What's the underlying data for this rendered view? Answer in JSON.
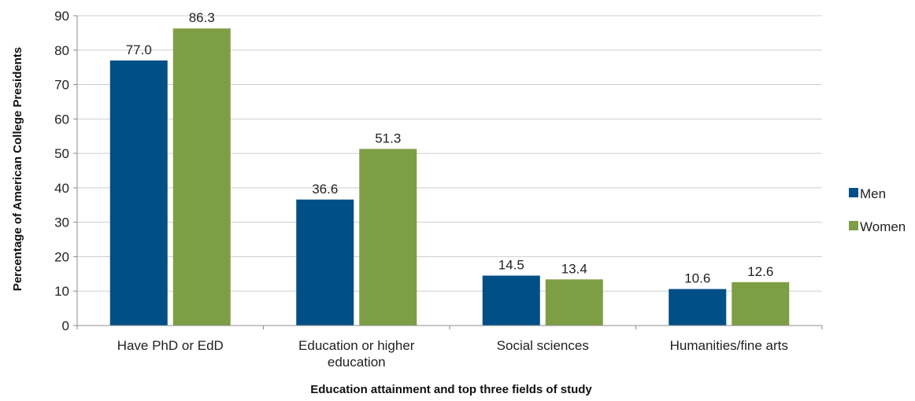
{
  "chart_data": {
    "type": "bar",
    "categories": [
      [
        "Have PhD or EdD"
      ],
      [
        "Education or higher",
        "education"
      ],
      [
        "Social sciences"
      ],
      [
        "Humanities/fine arts"
      ]
    ],
    "series": [
      {
        "name": "Men",
        "values": [
          77.0,
          36.6,
          14.5,
          10.6
        ],
        "color": "#004f86"
      },
      {
        "name": "Women",
        "values": [
          86.3,
          51.3,
          13.4,
          12.6
        ],
        "color": "#7e9e45"
      }
    ],
    "title": "",
    "xlabel": "Education attainment and top three fields of study",
    "ylabel": "Percentage of American College Presidents",
    "ylim": [
      0,
      90
    ],
    "yticks": [
      0,
      10,
      20,
      30,
      40,
      50,
      60,
      70,
      80,
      90
    ],
    "grid": true,
    "legend_position": "right",
    "gridline_color": "#cfcfcf",
    "axis_color": "#8c8c8c"
  }
}
